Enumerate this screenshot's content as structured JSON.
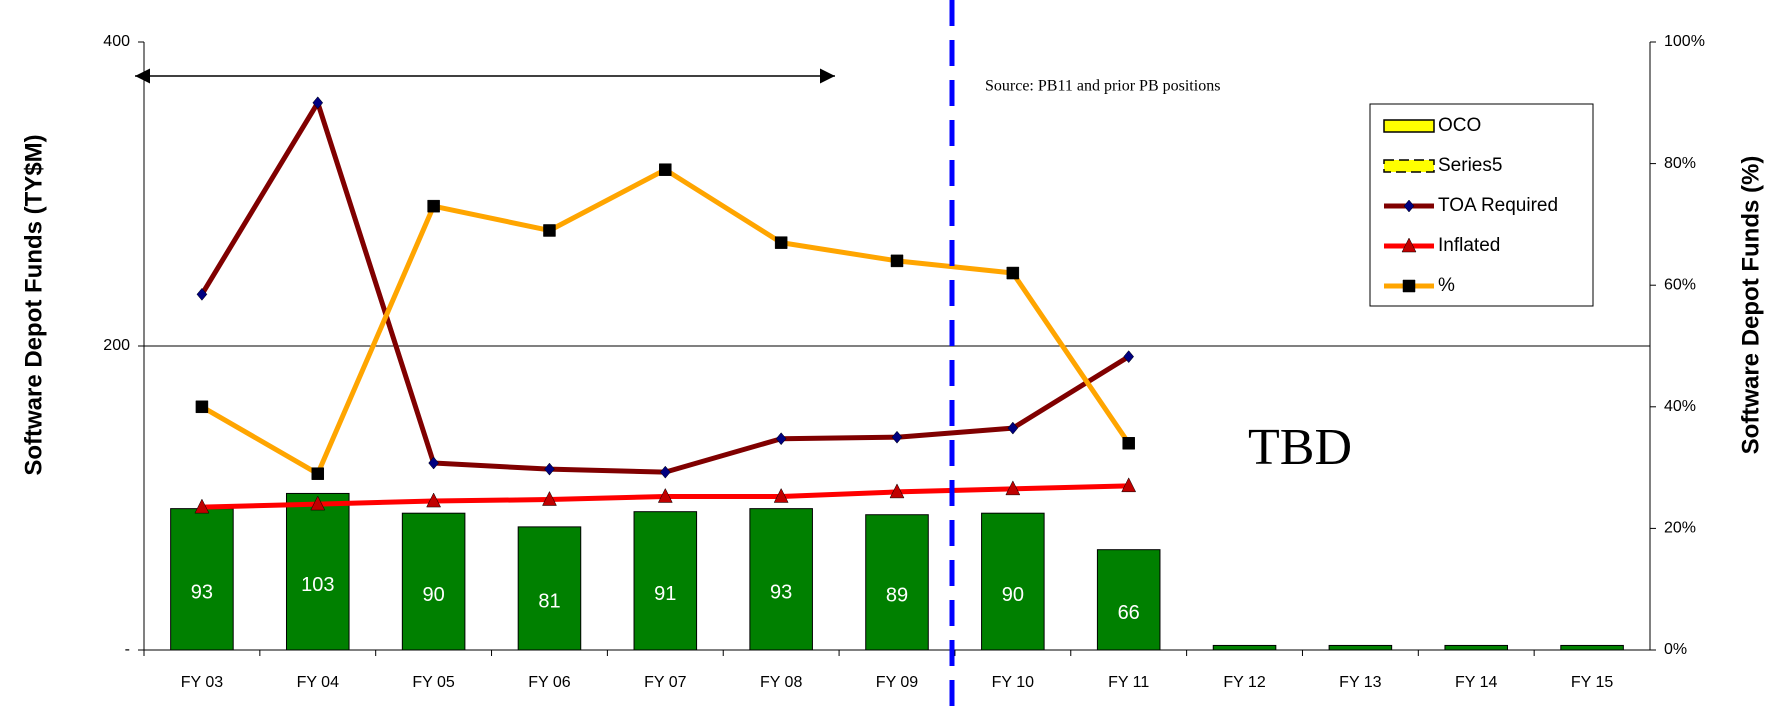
{
  "chart_data": {
    "type": "bar_line",
    "categories": [
      "FY 03",
      "FY 04",
      "FY 05",
      "FY 06",
      "FY 07",
      "FY 08",
      "FY 09",
      "FY 10",
      "FY 11",
      "FY 12",
      "FY 13",
      "FY 14",
      "FY 15"
    ],
    "y_label": "Software Depot Funds (TY$M)",
    "y2_label": "Software Depot Funds (%)",
    "ylim": [
      0,
      400
    ],
    "yticks": [
      {
        "value": 0,
        "label": "-"
      },
      200,
      400
    ],
    "y2lim": [
      0,
      100
    ],
    "y2ticks": [
      {
        "value": 0,
        "label": "0%"
      },
      {
        "value": 20,
        "label": "20%"
      },
      {
        "value": 40,
        "label": "40%"
      },
      {
        "value": 60,
        "label": "60%"
      },
      {
        "value": 80,
        "label": "80%"
      },
      {
        "value": 100,
        "label": "100%"
      }
    ],
    "grid": true,
    "legend": "upper right",
    "bars": {
      "color": "#008000",
      "values": [
        93,
        103,
        90,
        81,
        91,
        93,
        89,
        90,
        66,
        3,
        3,
        3,
        3
      ],
      "value_labels": [
        "93",
        "103",
        "90",
        "81",
        "91",
        "93",
        "89",
        "90",
        "66",
        null,
        null,
        null,
        null
      ]
    },
    "series": [
      {
        "name": "OCO",
        "kind": "bar",
        "color": "#ffff00",
        "values": [
          null,
          null,
          null,
          null,
          null,
          null,
          null,
          null,
          null,
          null,
          null,
          null,
          null
        ]
      },
      {
        "name": "Series5",
        "kind": "dashed-bar",
        "color": "#ffff00",
        "values": [
          null,
          null,
          null,
          null,
          null,
          null,
          null,
          null,
          null,
          null,
          null,
          null,
          null
        ]
      },
      {
        "name": "TOA Required",
        "kind": "line",
        "color": "#800000",
        "marker": "diamond",
        "marker_color": "#000080",
        "values": [
          234,
          360,
          123,
          119,
          117,
          139,
          140,
          146,
          193,
          null,
          null,
          null,
          null
        ]
      },
      {
        "name": "Inflated",
        "kind": "line",
        "color": "#ff0000",
        "marker": "triangle",
        "marker_color": "#c00000",
        "values": [
          94,
          96,
          98,
          99,
          101,
          101,
          104,
          106,
          108,
          null,
          null,
          null,
          null
        ]
      },
      {
        "name": "%",
        "kind": "line",
        "axis": "y2",
        "color": "#ffa500",
        "marker": "square",
        "marker_color": "#000000",
        "values": [
          40,
          29,
          73,
          69,
          79,
          67,
          64,
          62,
          34,
          null,
          null,
          null,
          null
        ]
      }
    ],
    "annotations": [
      "Source: PB11 and prior PB positions",
      "TBD"
    ]
  }
}
